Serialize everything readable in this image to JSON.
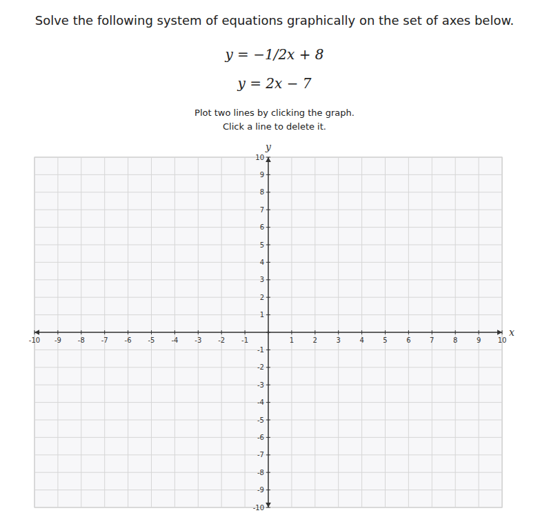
{
  "chart_data": {
    "type": "cartesian",
    "title": "Solve the following system of equations graphically on the set of axes below.",
    "annotations": [
      "y = −1/2x + 8",
      "y = 2x − 7",
      "Plot two lines by clicking the graph.",
      "Click a line to delete it."
    ],
    "xlabel": "x",
    "ylabel": "y",
    "xlim": [
      -10,
      10
    ],
    "ylim": [
      -10,
      10
    ],
    "xticks": [
      -10,
      -9,
      -8,
      -7,
      -6,
      -5,
      -4,
      -3,
      -2,
      -1,
      {
        "value": 0,
        "label": null
      },
      1,
      2,
      3,
      4,
      5,
      6,
      7,
      8,
      9,
      10
    ],
    "yticks": [
      -10,
      -9,
      -8,
      -7,
      -6,
      -5,
      -4,
      -3,
      -2,
      -1,
      {
        "value": 0,
        "label": null
      },
      1,
      2,
      3,
      4,
      5,
      6,
      7,
      8,
      9,
      10
    ],
    "grid": true
  }
}
